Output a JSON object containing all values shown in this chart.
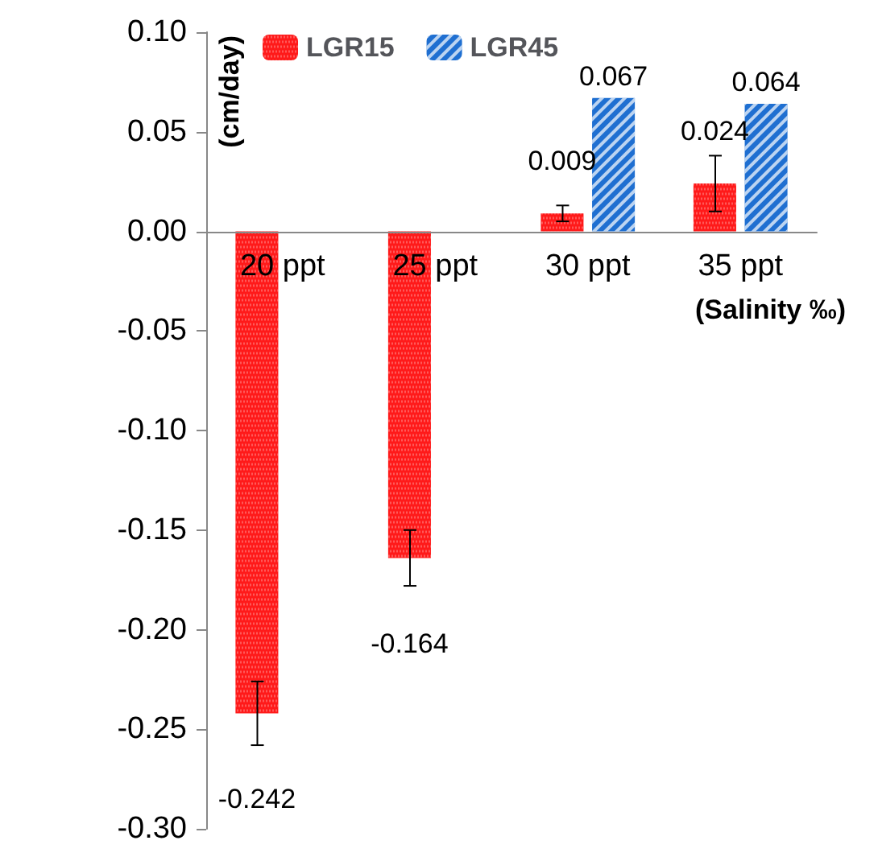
{
  "chart_data": {
    "type": "bar",
    "xlabel": "(Salinity ‰)",
    "ylabel": "(cm/day)",
    "categories": [
      "20 ppt",
      "25 ppt",
      "30 ppt",
      "35 ppt"
    ],
    "series": [
      {
        "name": "LGR15",
        "color": "#ff1a1a",
        "values": [
          -0.242,
          -0.164,
          0.009,
          0.024
        ],
        "errors": [
          0.016,
          0.014,
          0.004,
          0.014
        ]
      },
      {
        "name": "LGR45",
        "color": "#1f6fd1",
        "values": [
          null,
          null,
          0.067,
          0.064
        ]
      }
    ],
    "ylim": [
      -0.3,
      0.1
    ],
    "yticks": [
      {
        "value": -0.3,
        "label": "-0.30"
      },
      {
        "value": -0.25,
        "label": "-0.25"
      },
      {
        "value": -0.2,
        "label": "-0.20"
      },
      {
        "value": -0.15,
        "label": "-0.15"
      },
      {
        "value": -0.1,
        "label": "-0.10"
      },
      {
        "value": -0.05,
        "label": "-0.05"
      },
      {
        "value": 0,
        "label": "0.00"
      },
      {
        "value": 0.05,
        "label": "0.05"
      },
      {
        "value": 0.1,
        "label": "0.10"
      }
    ],
    "data_labels": true,
    "legend": "top left"
  }
}
